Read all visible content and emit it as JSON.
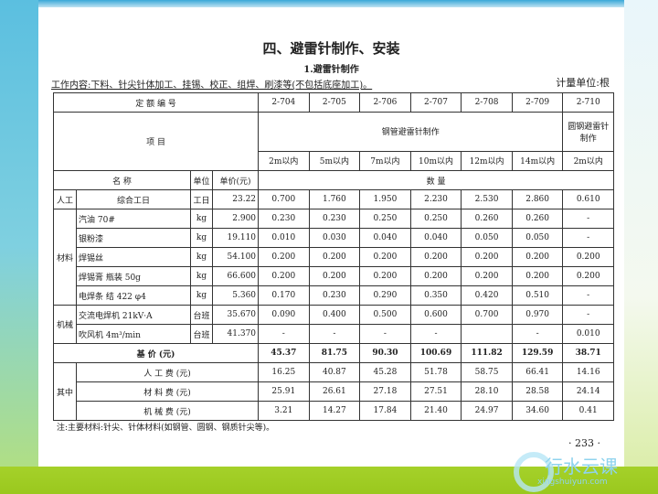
{
  "title": "四、避雷针制作、安装",
  "subtitle": "1.避雷针制作",
  "work_content": "工作内容:下料、针尖针体加工、挂锡、校正、组焊、刷漆等(不包括底座加工)。",
  "unit": "计量单位:根",
  "table": {
    "code_label": "定 额 编 号",
    "codes": [
      "2-704",
      "2-705",
      "2-706",
      "2-707",
      "2-708",
      "2-709",
      "2-710"
    ],
    "item_label": "项 目",
    "group1": "钢管避雷针制作",
    "group2": "圆钢避雷针制作",
    "sizes": [
      "2m以内",
      "5m以内",
      "7m以内",
      "10m以内",
      "12m以内",
      "14m以内",
      "2m以内"
    ],
    "name_label": "名 称",
    "unit_label": "单位",
    "price_label": "单价(元)",
    "qty_label": "数 量",
    "labor_cat": "人工",
    "material_cat": "材料",
    "machine_cat": "机械",
    "rows": [
      {
        "name": "综合工日",
        "unit": "工日",
        "price": "23.22",
        "v": [
          "0.700",
          "1.760",
          "1.950",
          "2.230",
          "2.530",
          "2.860",
          "0.610"
        ]
      },
      {
        "name": "汽油 70#",
        "unit": "kg",
        "price": "2.900",
        "v": [
          "0.230",
          "0.230",
          "0.250",
          "0.250",
          "0.260",
          "0.260",
          "-"
        ]
      },
      {
        "name": "银粉漆",
        "unit": "kg",
        "price": "19.110",
        "v": [
          "0.010",
          "0.030",
          "0.040",
          "0.040",
          "0.050",
          "0.050",
          "-"
        ]
      },
      {
        "name": "焊锡丝",
        "unit": "kg",
        "price": "54.100",
        "v": [
          "0.200",
          "0.200",
          "0.200",
          "0.200",
          "0.200",
          "0.200",
          "0.200"
        ]
      },
      {
        "name": "焊锡膏 瓶装 50g",
        "unit": "kg",
        "price": "66.600",
        "v": [
          "0.200",
          "0.200",
          "0.200",
          "0.200",
          "0.200",
          "0.200",
          "0.200"
        ]
      },
      {
        "name": "电焊条 结 422 φ4",
        "unit": "kg",
        "price": "5.360",
        "v": [
          "0.170",
          "0.230",
          "0.290",
          "0.350",
          "0.420",
          "0.510",
          "-"
        ]
      },
      {
        "name": "交流电焊机 21kV·A",
        "unit": "台班",
        "price": "35.670",
        "v": [
          "0.090",
          "0.400",
          "0.500",
          "0.600",
          "0.700",
          "0.970",
          "-"
        ]
      },
      {
        "name": "吹风机 4m³/min",
        "unit": "台班",
        "price": "41.370",
        "v": [
          "-",
          "-",
          "-",
          "-",
          "",
          "-",
          "0.010"
        ]
      }
    ],
    "base_label": "基 价 (元)",
    "base": [
      "45.37",
      "81.75",
      "90.30",
      "100.69",
      "111.82",
      "129.59",
      "38.71"
    ],
    "of_which": "其中",
    "costs": [
      {
        "label": "人 工 费 (元)",
        "v": [
          "16.25",
          "40.87",
          "45.28",
          "51.78",
          "58.75",
          "66.41",
          "14.16"
        ]
      },
      {
        "label": "材 料 费 (元)",
        "v": [
          "25.91",
          "26.61",
          "27.18",
          "27.51",
          "28.10",
          "28.58",
          "24.14"
        ]
      },
      {
        "label": "机 械 费 (元)",
        "v": [
          "3.21",
          "14.27",
          "17.84",
          "21.40",
          "24.97",
          "34.60",
          "0.41"
        ]
      }
    ]
  },
  "note": "注:主要材料:针尖、针体材料(如钢管、圆钢、钢质针尖等)。",
  "page_number": "· 233 ·",
  "watermark": {
    "text": "行水云课",
    "url": "xingshuiyun.com"
  }
}
